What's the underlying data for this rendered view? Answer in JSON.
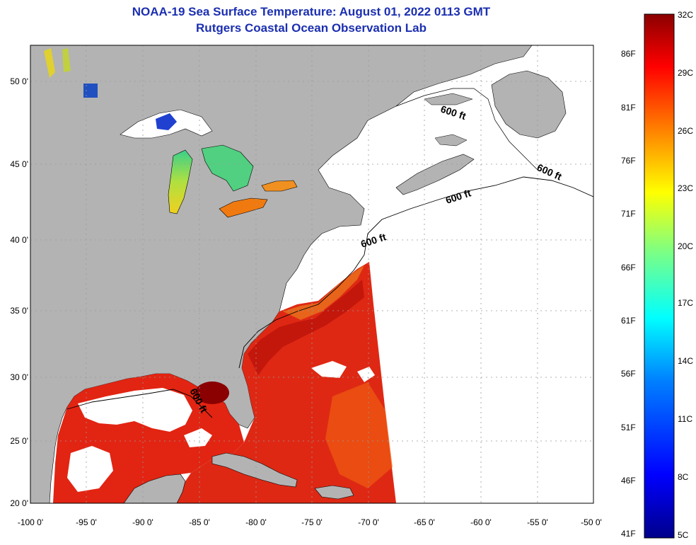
{
  "title": {
    "line1": "NOAA-19 Sea Surface Temperature:  August 01, 2022 0113 GMT",
    "line2": "Rutgers Coastal Ocean Observation Lab"
  },
  "map": {
    "lon_labels": [
      "-100 0'",
      "-95 0'",
      "-90 0'",
      "-85 0'",
      "-80 0'",
      "-75 0'",
      "-70 0'",
      "-65 0'",
      "-60 0'",
      "-55 0'",
      "-50 0'"
    ],
    "lat_labels": [
      "20 0'",
      "25 0'",
      "30 0'",
      "35 0'",
      "40 0'",
      "45 0'",
      "50 0'"
    ],
    "contour_label": "600 ft",
    "colors": {
      "land": "#b3b3b3",
      "nodata": "#ffffff",
      "warm": "#e02a10",
      "hot": "#8b0000",
      "lake_cool": "#55d070",
      "lake_warm": "#f07a10"
    }
  },
  "colorbar": {
    "celsius_labels": [
      "32C",
      "29C",
      "26C",
      "23C",
      "20C",
      "17C",
      "14C",
      "11C",
      "8C",
      "5C"
    ],
    "fahrenheit_labels": [
      "86F",
      "81F",
      "76F",
      "71F",
      "66F",
      "61F",
      "56F",
      "51F",
      "46F",
      "41F"
    ],
    "stops": [
      "#00008b",
      "#0000ff",
      "#0080ff",
      "#00ffff",
      "#80ff80",
      "#ffff00",
      "#ff8000",
      "#ff0000",
      "#8b0000"
    ]
  }
}
